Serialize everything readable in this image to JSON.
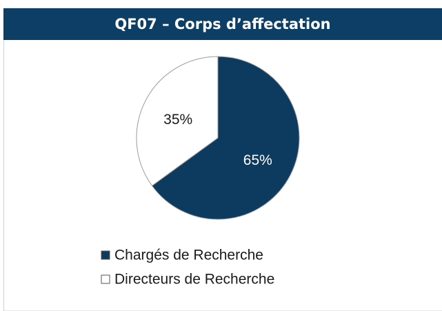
{
  "chart_data": {
    "type": "pie",
    "title": "QF07 – Corps d’affectation",
    "categories": [
      "Chargés de Recherche",
      "Directeurs de Recherche"
    ],
    "values": [
      65,
      35
    ],
    "value_labels": [
      "65%",
      "35%"
    ],
    "colors": [
      "#0d3a5f",
      "#ffffff"
    ],
    "label_colors": [
      "#ffffff",
      "#1a1a1a"
    ]
  }
}
